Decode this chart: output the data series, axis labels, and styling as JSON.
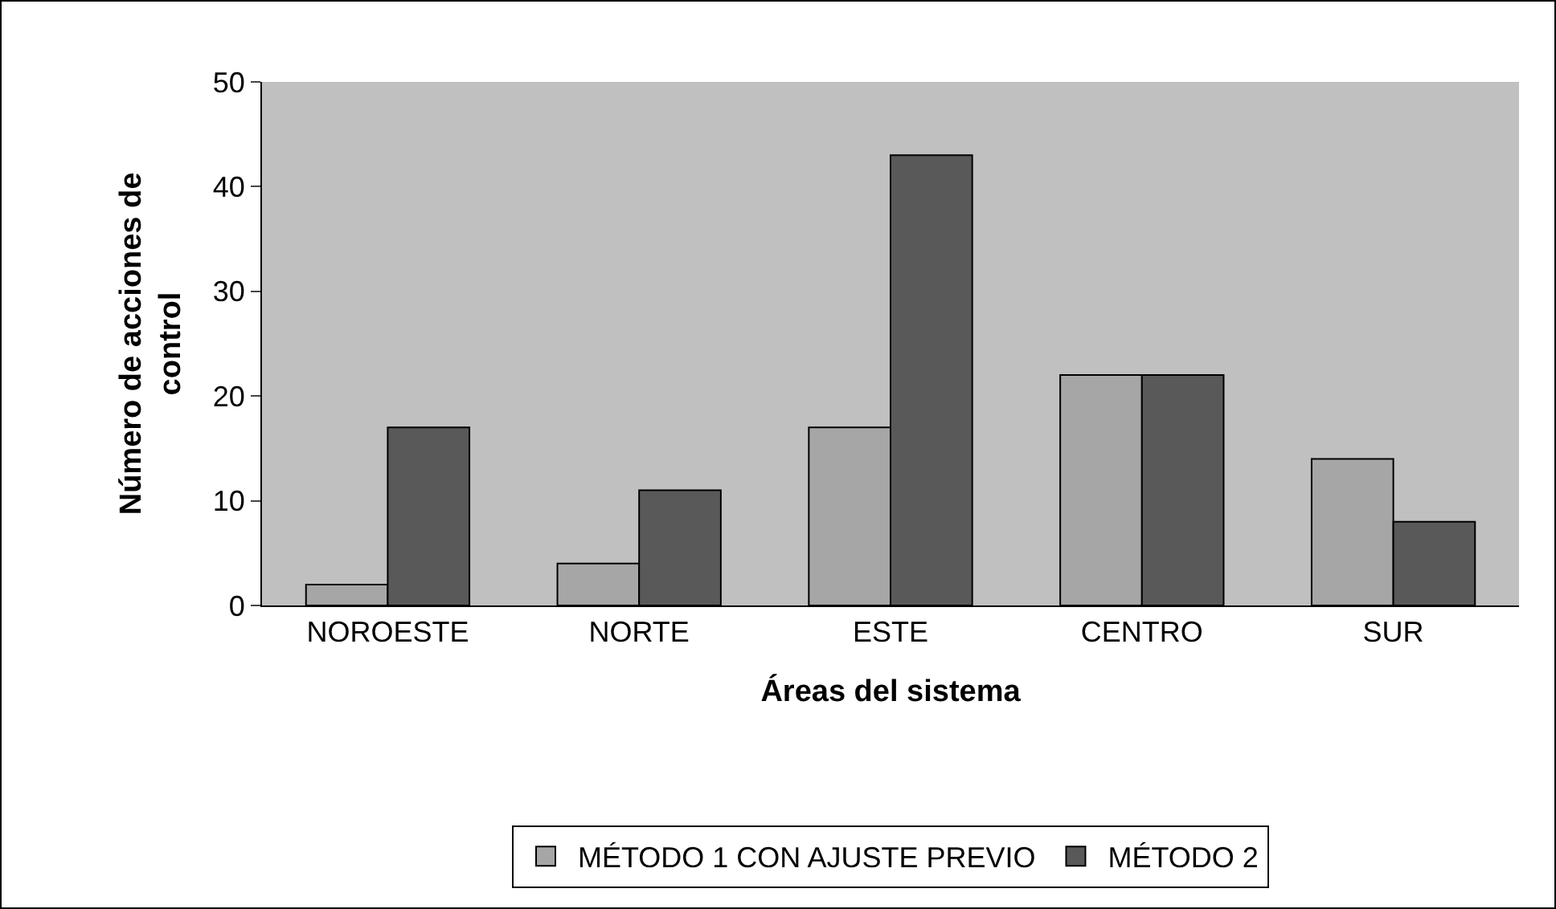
{
  "chart_data": {
    "type": "bar",
    "xlabel": "Áreas del sistema",
    "ylabel": "Número de acciones de control",
    "categories": [
      "NOROESTE",
      "NORTE",
      "ESTE",
      "CENTRO",
      "SUR"
    ],
    "series": [
      {
        "name": "MÉTODO 1 CON AJUSTE PREVIO",
        "color": "#a6a6a6",
        "values": [
          2,
          4,
          17,
          22,
          14
        ]
      },
      {
        "name": "MÉTODO 2",
        "color": "#595959",
        "values": [
          17,
          11,
          43,
          22,
          8
        ]
      }
    ],
    "ylim": [
      0,
      50
    ],
    "yticks": [
      0,
      10,
      20,
      30,
      40,
      50
    ],
    "grid": false,
    "legend": "bottom"
  }
}
